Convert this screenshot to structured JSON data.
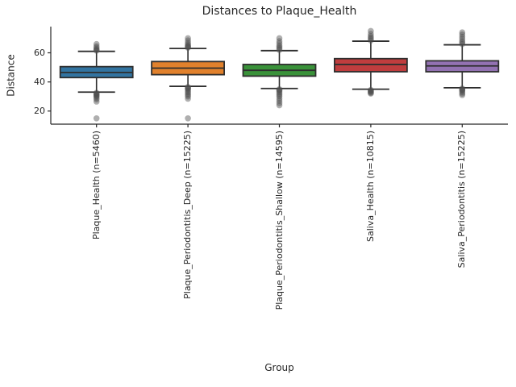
{
  "chart_data": {
    "type": "boxplot",
    "title": "Distances to Plaque_Health",
    "xlabel": "Group",
    "ylabel": "Distance",
    "ylim": [
      11,
      78
    ],
    "yticks": [
      20,
      40,
      60
    ],
    "grid": false,
    "legend": "none",
    "axis_color": "#262626",
    "box_edge_color": "#2e2e2e",
    "flier_color": "#4d4d4d",
    "groups": [
      {
        "label": "Plaque_Health (n=5460)",
        "n": 5460,
        "color": "#3274a1",
        "whislo": 33,
        "q1": 43,
        "med": 46.5,
        "q3": 50.5,
        "whishi": 61,
        "fliers_high": [
          61.5,
          62,
          62.5,
          63.5,
          64.5,
          66
        ],
        "fliers_low": [
          32.5,
          32,
          31.5,
          31,
          30.5,
          30,
          29,
          28,
          26.5,
          15
        ]
      },
      {
        "label": "Plaque_Periodontitis_Deep (n=15225)",
        "n": 15225,
        "color": "#e1812c",
        "whislo": 37,
        "q1": 45,
        "med": 49.5,
        "q3": 54,
        "whishi": 63,
        "fliers_high": [
          63.5,
          64,
          64.5,
          65,
          66,
          67,
          68.5,
          70
        ],
        "fliers_low": [
          36.5,
          36,
          35.5,
          35,
          34,
          33,
          32,
          31,
          30,
          28.5,
          15
        ]
      },
      {
        "label": "Plaque_Periodontitis_Shallow (n=14595)",
        "n": 14595,
        "color": "#3a923a",
        "whislo": 35.5,
        "q1": 44,
        "med": 48,
        "q3": 52,
        "whishi": 61.5,
        "fliers_high": [
          62,
          63,
          64,
          65,
          66.5,
          68,
          70
        ],
        "fliers_low": [
          35,
          34.5,
          34,
          33,
          32,
          31,
          30,
          28.5,
          27,
          25.5,
          24
        ]
      },
      {
        "label": "Saliva_Health (n=10815)",
        "n": 10815,
        "color": "#c03d3e",
        "whislo": 35,
        "q1": 47,
        "med": 52,
        "q3": 56,
        "whishi": 68,
        "fliers_high": [
          68.5,
          69.5,
          70.5,
          71.5,
          73,
          75
        ],
        "fliers_low": [
          34.5,
          34,
          33.5,
          33,
          32.5,
          32
        ]
      },
      {
        "label": "Saliva_Periodontitis (n=15225)",
        "n": 15225,
        "color": "#9372b2",
        "whislo": 36,
        "q1": 47,
        "med": 51,
        "q3": 54.5,
        "whishi": 65.5,
        "fliers_high": [
          66,
          67,
          68,
          69.5,
          71,
          72.5,
          74
        ],
        "fliers_low": [
          35.5,
          35,
          34.5,
          34,
          33,
          32,
          31
        ]
      }
    ]
  }
}
